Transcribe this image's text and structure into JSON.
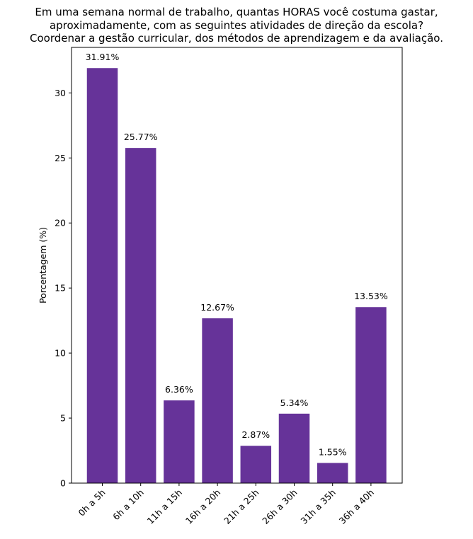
{
  "chart_data": {
    "type": "bar",
    "title_lines": [
      "Em uma semana normal de trabalho, quantas HORAS você costuma gastar,",
      "aproximadamente, com as seguintes atividades de direção da escola?",
      "Coordenar a gestão curricular, dos métodos de aprendizagem e da avaliação."
    ],
    "ylabel": "Porcentagem (%)",
    "xlabel": "",
    "categories": [
      "0h a 5h",
      "6h a 10h",
      "11h a 15h",
      "16h a 20h",
      "21h a 25h",
      "26h a 30h",
      "31h a 35h",
      "36h a 40h"
    ],
    "values": [
      31.91,
      25.77,
      6.36,
      12.67,
      2.87,
      5.34,
      1.55,
      13.53
    ],
    "data_labels": [
      "31.91%",
      "25.77%",
      "6.36%",
      "12.67%",
      "2.87%",
      "5.34%",
      "1.55%",
      "13.53%"
    ],
    "yticks": [
      0,
      5,
      10,
      15,
      20,
      25,
      30
    ],
    "ylim": [
      0,
      33.5
    ],
    "bar_color": "#663399",
    "grid": false,
    "legend": "none"
  }
}
